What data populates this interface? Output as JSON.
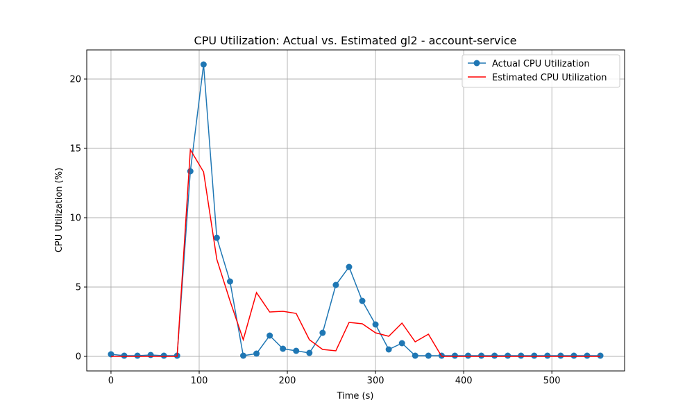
{
  "chart_data": {
    "type": "line",
    "title": "CPU Utilization: Actual vs. Estimated gl2 - account-service",
    "xlabel": "Time (s)",
    "ylabel": "CPU Utilization (%)",
    "xlim": [
      -27.5,
      582.5
    ],
    "ylim": [
      -1.05,
      22.1
    ],
    "xticks": [
      0,
      100,
      200,
      300,
      400,
      500
    ],
    "yticks": [
      0,
      5,
      10,
      15,
      20
    ],
    "grid": true,
    "legend_position": "upper-right",
    "series": [
      {
        "name": "Actual CPU Utilization",
        "color": "#1f77b4",
        "marker": "circle",
        "x": [
          0,
          15,
          30,
          45,
          60,
          75,
          90,
          105,
          120,
          135,
          150,
          165,
          180,
          195,
          210,
          225,
          240,
          255,
          270,
          285,
          300,
          315,
          330,
          345,
          360,
          375,
          390,
          405,
          420,
          435,
          450,
          465,
          480,
          495,
          510,
          525,
          540,
          555
        ],
        "y": [
          0.15,
          0.05,
          0.05,
          0.1,
          0.05,
          0.05,
          13.35,
          21.05,
          8.55,
          5.4,
          0.05,
          0.2,
          1.5,
          0.55,
          0.4,
          0.25,
          1.7,
          5.15,
          6.45,
          4.0,
          2.3,
          0.5,
          0.95,
          0.05,
          0.05,
          0.05,
          0.05,
          0.05,
          0.05,
          0.05,
          0.05,
          0.05,
          0.05,
          0.05,
          0.05,
          0.05,
          0.05,
          0.05
        ]
      },
      {
        "name": "Estimated CPU Utilization",
        "color": "#ff0000",
        "marker": "none",
        "x": [
          0,
          15,
          30,
          45,
          60,
          75,
          90,
          105,
          120,
          135,
          150,
          165,
          180,
          195,
          210,
          225,
          240,
          255,
          270,
          285,
          300,
          315,
          330,
          345,
          360,
          375,
          390,
          405,
          420,
          435,
          450,
          465,
          480,
          495,
          510,
          525,
          540,
          555
        ],
        "y": [
          0.0,
          0.0,
          0.0,
          0.0,
          0.0,
          0.0,
          14.9,
          13.3,
          7.0,
          4.0,
          1.2,
          4.6,
          3.2,
          3.25,
          3.1,
          1.2,
          0.5,
          0.4,
          2.45,
          2.35,
          1.7,
          1.45,
          2.4,
          1.05,
          1.6,
          0.0,
          0.0,
          0.0,
          0.0,
          0.0,
          0.0,
          0.0,
          0.0,
          0.0,
          0.0,
          0.0,
          0.0,
          0.0
        ]
      }
    ]
  }
}
